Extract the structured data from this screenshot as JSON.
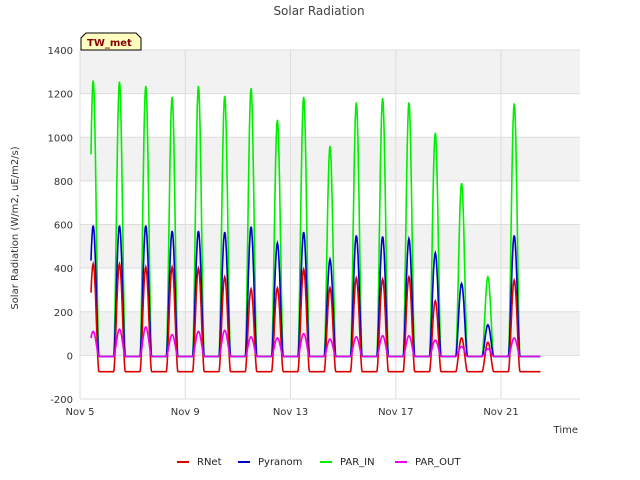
{
  "badge": "TW_met",
  "chart_data": {
    "type": "line",
    "title": "Solar Radiation",
    "xlabel": "Time",
    "ylabel": "Solar Radiation (W/m2, uE/m2/s)",
    "xlim": [
      "2022-11-05",
      "2022-11-24"
    ],
    "ylim": [
      -200,
      1400
    ],
    "x_ticks": [
      {
        "date": "2022-11-05",
        "label": "Nov 5"
      },
      {
        "date": "2022-11-09",
        "label": "Nov 9"
      },
      {
        "date": "2022-11-13",
        "label": "Nov 13"
      },
      {
        "date": "2022-11-17",
        "label": "Nov 17"
      },
      {
        "date": "2022-11-21",
        "label": "Nov 21"
      }
    ],
    "y_ticks": [
      -200,
      0,
      200,
      400,
      600,
      800,
      1000,
      1200,
      1400
    ],
    "grid": true,
    "legend_position": "bottom",
    "days": [
      "2022-11-05",
      "2022-11-06",
      "2022-11-07",
      "2022-11-08",
      "2022-11-09",
      "2022-11-10",
      "2022-11-11",
      "2022-11-12",
      "2022-11-13",
      "2022-11-14",
      "2022-11-15",
      "2022-11-16",
      "2022-11-17",
      "2022-11-18",
      "2022-11-19",
      "2022-11-20",
      "2022-11-21",
      "2022-11-22"
    ],
    "series": [
      {
        "name": "RNet",
        "color": "#dd0000",
        "daily_peak": [
          420,
          420,
          405,
          405,
          400,
          360,
          305,
          310,
          395,
          310,
          355,
          350,
          360,
          250,
          80,
          60,
          345
        ],
        "night_value": -75
      },
      {
        "name": "Pyranom",
        "color": "#0000cc",
        "daily_peak": [
          595,
          595,
          595,
          570,
          570,
          565,
          590,
          515,
          565,
          440,
          550,
          545,
          535,
          470,
          330,
          140,
          550
        ],
        "night_value": -5
      },
      {
        "name": "PAR_IN",
        "color": "#00ee00",
        "daily_peak": [
          1260,
          1255,
          1235,
          1185,
          1235,
          1190,
          1225,
          1080,
          1185,
          960,
          1160,
          1180,
          1160,
          1020,
          790,
          360,
          1155
        ],
        "night_value": -5
      },
      {
        "name": "PAR_OUT",
        "color": "#ee00ee",
        "daily_peak": [
          110,
          120,
          130,
          95,
          110,
          115,
          85,
          80,
          100,
          75,
          85,
          90,
          90,
          70,
          40,
          30,
          80
        ],
        "night_value": -5
      }
    ]
  }
}
